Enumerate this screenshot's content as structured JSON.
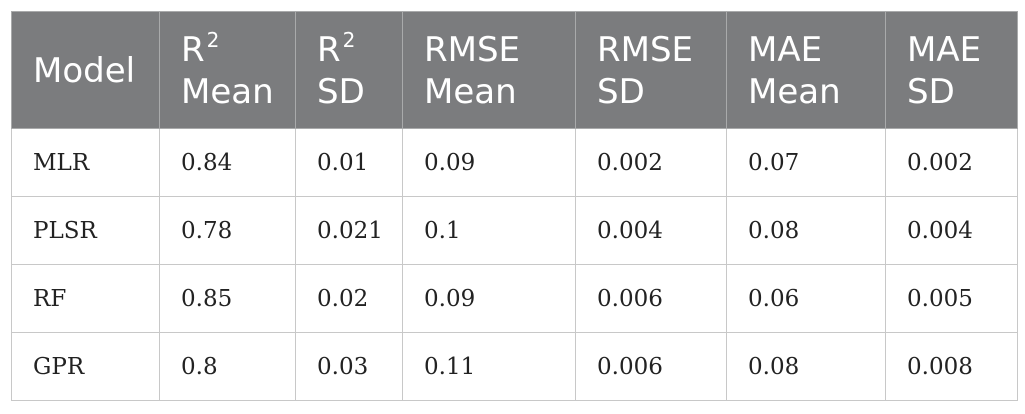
{
  "table": {
    "headers": [
      {
        "line1": "Model",
        "sup": "",
        "line2": ""
      },
      {
        "line1": "R",
        "sup": "2",
        "line2": "Mean"
      },
      {
        "line1": "R",
        "sup": "2",
        "line2": "SD"
      },
      {
        "line1": "RMSE",
        "sup": "",
        "line2": "Mean"
      },
      {
        "line1": "RMSE",
        "sup": "",
        "line2": "SD"
      },
      {
        "line1": "MAE",
        "sup": "",
        "line2": "Mean"
      },
      {
        "line1": "MAE",
        "sup": "",
        "line2": "SD"
      }
    ],
    "rows": [
      [
        "MLR",
        "0.84",
        "0.01",
        "0.09",
        "0.002",
        "0.07",
        "0.002"
      ],
      [
        "PLSR",
        "0.78",
        "0.021",
        "0.1",
        "0.004",
        "0.08",
        "0.004"
      ],
      [
        "RF",
        "0.85",
        "0.02",
        "0.09",
        "0.006",
        "0.06",
        "0.005"
      ],
      [
        "GPR",
        "0.8",
        "0.03",
        "0.11",
        "0.006",
        "0.08",
        "0.008"
      ]
    ]
  },
  "colors": {
    "header_background": "#7b7c7e",
    "header_text": "#ffffff",
    "border": "#c8c8c8"
  }
}
